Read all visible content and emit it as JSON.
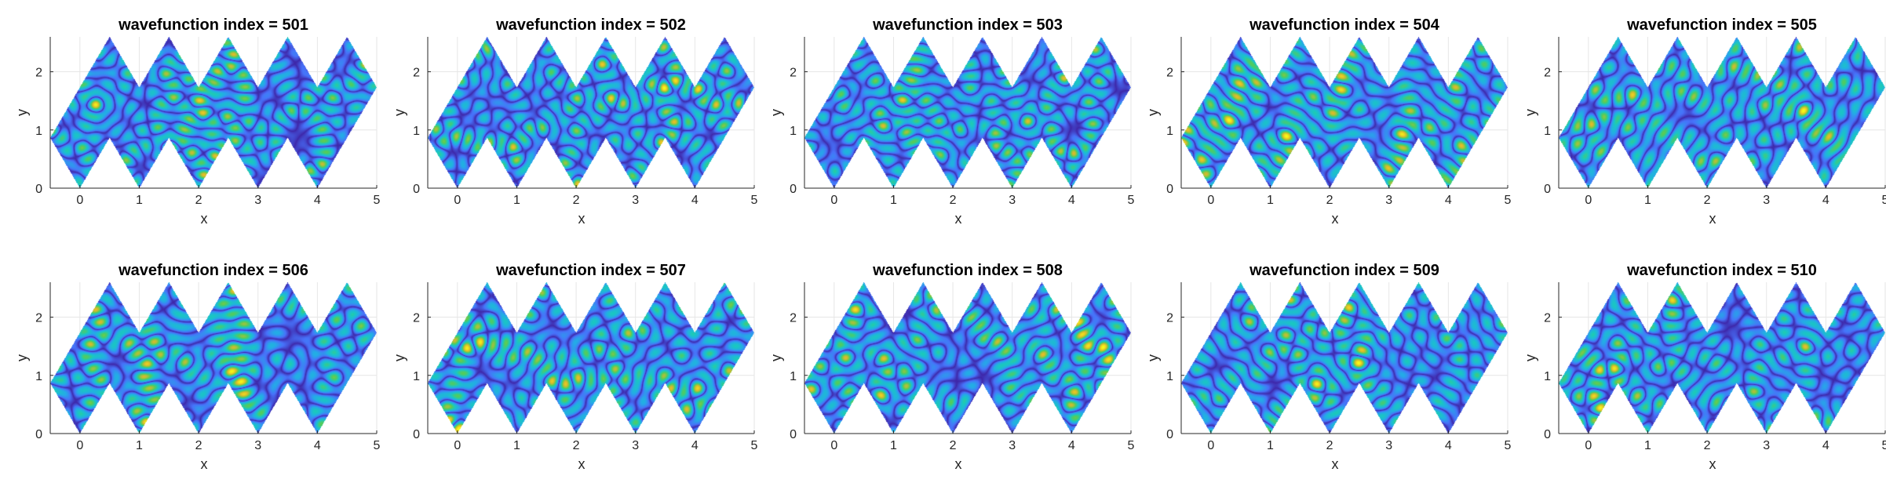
{
  "figure": {
    "background": "#ffffff"
  },
  "chart_data": {
    "type": "heatmap",
    "colormap": "parula",
    "colormap_stops": [
      "#3e26a8",
      "#4772fa",
      "#24abe7",
      "#1ac7c2",
      "#54cc5a",
      "#dbba2a",
      "#f9fb15"
    ],
    "domain": "zig-zag strip of adjacent equilateral-triangle units (four up-pointing peaks at x = 0.5, 1.5, 2.5, 3.5 reaching y = 2.6 and bottom notches), x from -0.5 to 5",
    "xlabel": "x",
    "ylabel": "y",
    "xlim": [
      -0.5,
      5
    ],
    "ylim": [
      0,
      2.6
    ],
    "xticks": [
      0,
      1,
      2,
      3,
      4,
      5
    ],
    "yticks": [
      0,
      1,
      2
    ],
    "grid": true,
    "subplots": [
      {
        "title": "wavefunction index = 501",
        "index": 501
      },
      {
        "title": "wavefunction index = 502",
        "index": 502
      },
      {
        "title": "wavefunction index = 503",
        "index": 503
      },
      {
        "title": "wavefunction index = 504",
        "index": 504
      },
      {
        "title": "wavefunction index = 505",
        "index": 505
      },
      {
        "title": "wavefunction index = 506",
        "index": 506
      },
      {
        "title": "wavefunction index = 507",
        "index": 507
      },
      {
        "title": "wavefunction index = 508",
        "index": 508
      },
      {
        "title": "wavefunction index = 509",
        "index": 509
      },
      {
        "title": "wavefunction index = 510",
        "index": 510
      }
    ]
  }
}
